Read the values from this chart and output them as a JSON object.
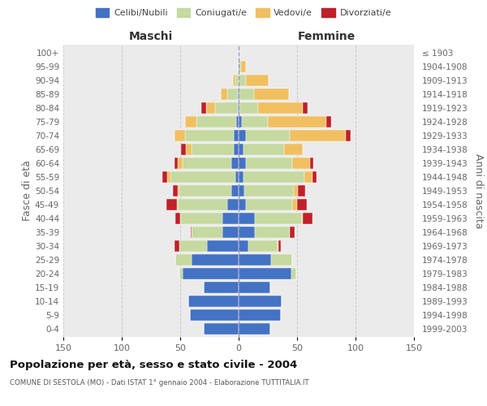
{
  "age_groups": [
    "0-4",
    "5-9",
    "10-14",
    "15-19",
    "20-24",
    "25-29",
    "30-34",
    "35-39",
    "40-44",
    "45-49",
    "50-54",
    "55-59",
    "60-64",
    "65-69",
    "70-74",
    "75-79",
    "80-84",
    "85-89",
    "90-94",
    "95-99",
    "100+"
  ],
  "birth_years": [
    "1999-2003",
    "1994-1998",
    "1989-1993",
    "1984-1988",
    "1979-1983",
    "1974-1978",
    "1969-1973",
    "1964-1968",
    "1959-1963",
    "1954-1958",
    "1949-1953",
    "1944-1948",
    "1939-1943",
    "1934-1938",
    "1929-1933",
    "1924-1928",
    "1919-1923",
    "1914-1918",
    "1909-1913",
    "1904-1908",
    "≤ 1903"
  ],
  "male": {
    "celibi": [
      30,
      42,
      43,
      30,
      48,
      40,
      27,
      14,
      14,
      10,
      6,
      3,
      6,
      4,
      4,
      2,
      1,
      1,
      0,
      0,
      0
    ],
    "coniugati": [
      0,
      0,
      0,
      0,
      3,
      14,
      24,
      26,
      36,
      42,
      45,
      55,
      42,
      36,
      42,
      34,
      19,
      9,
      3,
      1,
      0
    ],
    "vedovi": [
      0,
      0,
      0,
      0,
      0,
      0,
      0,
      0,
      0,
      1,
      1,
      3,
      4,
      5,
      9,
      10,
      8,
      5,
      2,
      0,
      0
    ],
    "divorziati": [
      0,
      0,
      0,
      0,
      0,
      0,
      4,
      1,
      4,
      9,
      4,
      4,
      3,
      4,
      0,
      0,
      4,
      0,
      0,
      0,
      0
    ]
  },
  "female": {
    "nubili": [
      27,
      36,
      37,
      27,
      45,
      28,
      8,
      14,
      14,
      6,
      5,
      4,
      6,
      4,
      6,
      3,
      1,
      1,
      0,
      0,
      0
    ],
    "coniugate": [
      0,
      0,
      0,
      0,
      4,
      18,
      25,
      30,
      40,
      40,
      42,
      52,
      40,
      35,
      38,
      22,
      16,
      12,
      6,
      2,
      0
    ],
    "vedove": [
      0,
      0,
      0,
      0,
      0,
      0,
      1,
      0,
      1,
      4,
      4,
      7,
      15,
      16,
      48,
      50,
      38,
      30,
      20,
      4,
      1
    ],
    "divorziate": [
      0,
      0,
      0,
      0,
      0,
      0,
      2,
      4,
      8,
      8,
      6,
      4,
      3,
      0,
      4,
      4,
      4,
      0,
      0,
      0,
      0
    ]
  },
  "colors": {
    "celibi": "#4472c4",
    "coniugati": "#c5d9a0",
    "vedovi": "#f0c060",
    "divorziati": "#c0202a"
  },
  "title": "Popolazione per età, sesso e stato civile - 2004",
  "subtitle": "COMUNE DI SESTOLA (MO) - Dati ISTAT 1° gennaio 2004 - Elaborazione TUTTITALIA.IT",
  "xlabel_left": "Maschi",
  "xlabel_right": "Femmine",
  "ylabel_left": "Fasce di età",
  "ylabel_right": "Anni di nascita",
  "xlim": 150,
  "legend_labels": [
    "Celibi/Nubili",
    "Coniugati/e",
    "Vedovi/e",
    "Divorziati/e"
  ],
  "bg_color": "#f8f8f8",
  "plot_bg": "#ebebeb"
}
